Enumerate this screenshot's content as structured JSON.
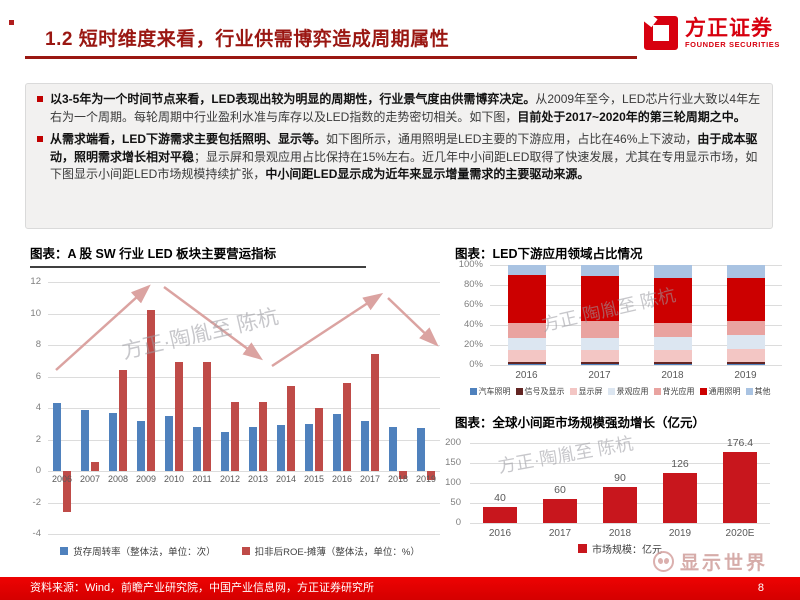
{
  "header": {
    "title": "1.2 短时维度来看，行业供需博弈造成周期属性",
    "logo": {
      "name": "方正证券",
      "subtitle": "FOUNDER SECURITIES"
    }
  },
  "intro": {
    "bullets": [
      {
        "segments": [
          {
            "text": "以3-5年为一个时间节点来看，LED表现出较为明显的周期性，行业景气度由供需博弈决定。",
            "bold": true
          },
          {
            "text": "从2009年至今，LED芯片行业大致以4年左右为一个周期。每轮周期中行业盈利水准与库存以及LED指数的走势密切相关。如下图，",
            "bold": false
          },
          {
            "text": "目前处于2017~2020年的第三轮周期之中。",
            "bold": true
          }
        ]
      },
      {
        "segments": [
          {
            "text": "从需求端看，LED下游需求主要包括照明、显示等。",
            "bold": true
          },
          {
            "text": "如下图所示，通用照明是LED主要的下游应用，占比在46%上下波动，",
            "bold": false
          },
          {
            "text": "由于成本驱动，照明需求增长相对平稳",
            "bold": true
          },
          {
            "text": "；显示屏和景观应用占比保持在15%左右。近几年中小间距LED取得了快速发展，尤其在专用显示市场，如下图显示小间距LED市场规模持续扩张，",
            "bold": false
          },
          {
            "text": "中小间距LED显示成为近年来显示增量需求的主要驱动来源。",
            "bold": true
          }
        ]
      }
    ]
  },
  "chart_data": [
    {
      "id": "led-operating-metrics",
      "type": "bar",
      "title": "图表：A 股 SW 行业 LED 板块主要营运指标",
      "categories": [
        "2006",
        "2007",
        "2008",
        "2009",
        "2010",
        "2011",
        "2012",
        "2013",
        "2014",
        "2015",
        "2016",
        "2017",
        "2018",
        "2019"
      ],
      "series": [
        {
          "name": "货存周转率（整体法，单位：次）",
          "color": "#4f81bd",
          "values": [
            4.3,
            3.9,
            3.7,
            3.2,
            3.5,
            2.8,
            2.5,
            2.8,
            2.9,
            3.0,
            3.6,
            3.2,
            2.8,
            2.7
          ]
        },
        {
          "name": "扣非后ROE-摊薄（整体法，单位：%）",
          "color": "#bf4b48",
          "values": [
            -2.6,
            0.6,
            6.4,
            10.2,
            6.9,
            6.9,
            4.4,
            4.4,
            5.4,
            4.0,
            5.6,
            7.4,
            -0.5,
            -0.6
          ]
        }
      ],
      "ylim": [
        -4,
        12
      ],
      "ytick_step": 2,
      "yticks": [
        12,
        10,
        8,
        6,
        4,
        2,
        0,
        -2,
        -4
      ],
      "grid": true,
      "legend_position": "bottom",
      "annotation": "四段涨跌循环箭头（周期示意）"
    },
    {
      "id": "led-downstream-share",
      "type": "bar",
      "stacked": true,
      "title": "图表：LED下游应用领域占比情况",
      "categories": [
        "2016",
        "2017",
        "2018",
        "2019"
      ],
      "series": [
        {
          "name": "汽车照明",
          "color": "#4f81bd",
          "values": [
            1,
            1,
            1,
            1
          ]
        },
        {
          "name": "信号及显示",
          "color": "#632523",
          "values": [
            2,
            2,
            2,
            2
          ]
        },
        {
          "name": "显示屏",
          "color": "#f3c6c4",
          "values": [
            12,
            12,
            12,
            13
          ]
        },
        {
          "name": "景观应用",
          "color": "#dce6f1",
          "values": [
            12,
            12,
            13,
            14
          ]
        },
        {
          "name": "背光应用",
          "color": "#e9a3a0",
          "values": [
            15,
            17,
            14,
            14
          ]
        },
        {
          "name": "通用照明",
          "color": "#cc0000",
          "values": [
            48,
            45,
            45,
            43
          ]
        },
        {
          "name": "其他",
          "color": "#a9c3e2",
          "values": [
            10,
            11,
            13,
            13
          ]
        }
      ],
      "ylim": [
        0,
        100
      ],
      "ytick_step": 20,
      "yticks": [
        "0%",
        "20%",
        "40%",
        "60%",
        "80%",
        "100%"
      ],
      "grid": true,
      "legend_position": "bottom",
      "unit": "%"
    },
    {
      "id": "small-pitch-market",
      "type": "bar",
      "title": "图表：全球小间距市场规模强劲增长（亿元）",
      "categories": [
        "2016",
        "2017",
        "2018",
        "2019",
        "2020E"
      ],
      "values": [
        40,
        60,
        90,
        126,
        176.4
      ],
      "data_labels": [
        "40",
        "60",
        "90",
        "126",
        "176.4"
      ],
      "color": "#c8161d",
      "legend": "市场规模：亿元",
      "ylim": [
        0,
        200
      ],
      "ytick_step": 50,
      "yticks": [
        200,
        150,
        100,
        50,
        0
      ],
      "grid": true,
      "legend_position": "bottom"
    }
  ],
  "meta": {
    "watermark": "方正·陶胤至 陈杭"
  },
  "brand": {
    "wechat_name": "显示世界"
  },
  "footer": {
    "source": "资料来源：Wind，前瞻产业研究院，中国产业信息网，方正证券研究所",
    "page": "8"
  }
}
